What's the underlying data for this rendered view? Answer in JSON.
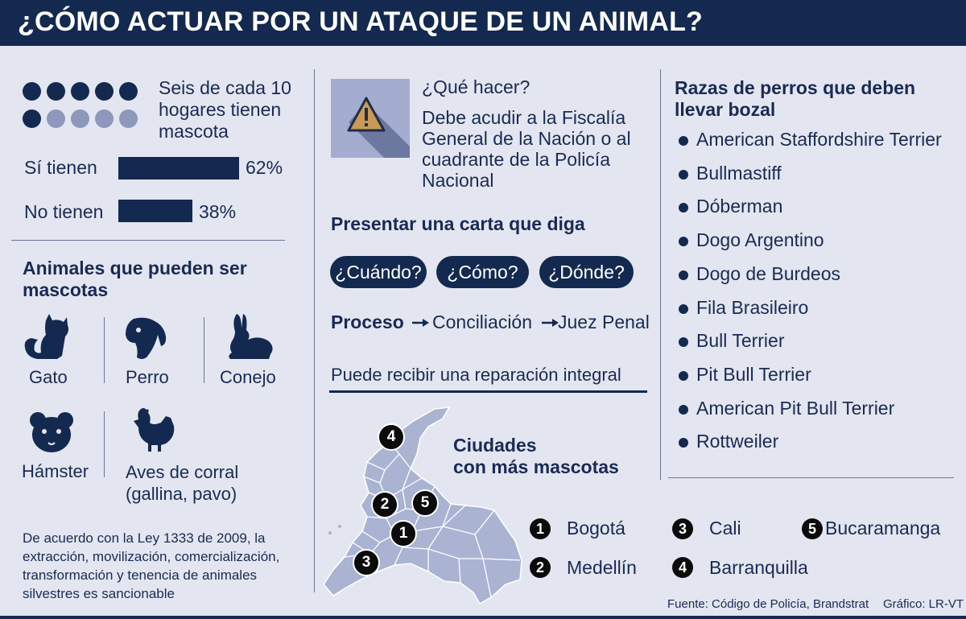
{
  "header": {
    "title": "¿CÓMO ACTUAR POR UN ATAQUE DE UN ANIMAL?"
  },
  "colors": {
    "navy": "#14294f",
    "light_dot": "#8d98ba",
    "background": "#e3e6f0",
    "map_fill": "#aab3d2"
  },
  "households": {
    "text_line1": "Seis de cada 10",
    "text_line2": "hogares tienen",
    "text_line3": "mascota",
    "dots_filled": 6,
    "dots_total": 10,
    "bars": [
      {
        "label": "Sí tienen",
        "value_label": "62%",
        "value": 62
      },
      {
        "label": "No tienen",
        "value_label": "38%",
        "value": 38
      }
    ]
  },
  "pets": {
    "title_line1": "Animales que pueden ser",
    "title_line2": "mascotas",
    "items": [
      {
        "label": "Gato",
        "icon": "cat-icon"
      },
      {
        "label": "Perro",
        "icon": "dog-icon"
      },
      {
        "label": "Conejo",
        "icon": "rabbit-icon"
      },
      {
        "label": "Hámster",
        "icon": "hamster-icon"
      },
      {
        "label_line1": "Aves de corral",
        "label_line2": "(gallina, pavo)",
        "icon": "chicken-icon"
      }
    ]
  },
  "law_note": {
    "line1": "De acuerdo con la Ley 1333 de 2009, la",
    "line2": "extracción, movilización, comercialización,",
    "line3": "transformación y tenencia de animales",
    "line4": "silvestres es sancionable"
  },
  "what_to_do": {
    "icon": "warning-icon",
    "title": "¿Qué hacer?",
    "line1": "Debe acudir a la Fiscalía",
    "line2": "General de la Nación o al",
    "line3": "cuadrante de la Policía",
    "line4": "Nacional"
  },
  "letter": {
    "title": "Presentar una carta que diga",
    "pills": [
      "¿Cuándo?",
      "¿Cómo?",
      "¿Dónde?"
    ]
  },
  "process": {
    "label": "Proceso",
    "step1": "Conciliación",
    "step2": "Juez Penal"
  },
  "reparation": "Puede recibir una reparación integral",
  "cities": {
    "title_line1": "Ciudades",
    "title_line2": "con más mascotas",
    "list": [
      {
        "num": "1",
        "name": "Bogotá"
      },
      {
        "num": "2",
        "name": "Medellín"
      },
      {
        "num": "3",
        "name": "Cali"
      },
      {
        "num": "4",
        "name": "Barranquilla"
      },
      {
        "num": "5",
        "name": "Bucaramanga"
      }
    ]
  },
  "breeds": {
    "title_line1": "Razas de perros que deben",
    "title_line2": "llevar bozal",
    "items": [
      "American Staffordshire Terrier",
      "Bullmastiff",
      "Dóberman",
      "Dogo Argentino",
      "Dogo de Burdeos",
      "Fila Brasileiro",
      "Bull Terrier",
      "Pit Bull Terrier",
      "American Pit Bull Terrier",
      "Rottweiler"
    ]
  },
  "footer": {
    "source": "Fuente: Código de Policía, Brandstrat",
    "credit": "Gráfico: LR-VT"
  }
}
